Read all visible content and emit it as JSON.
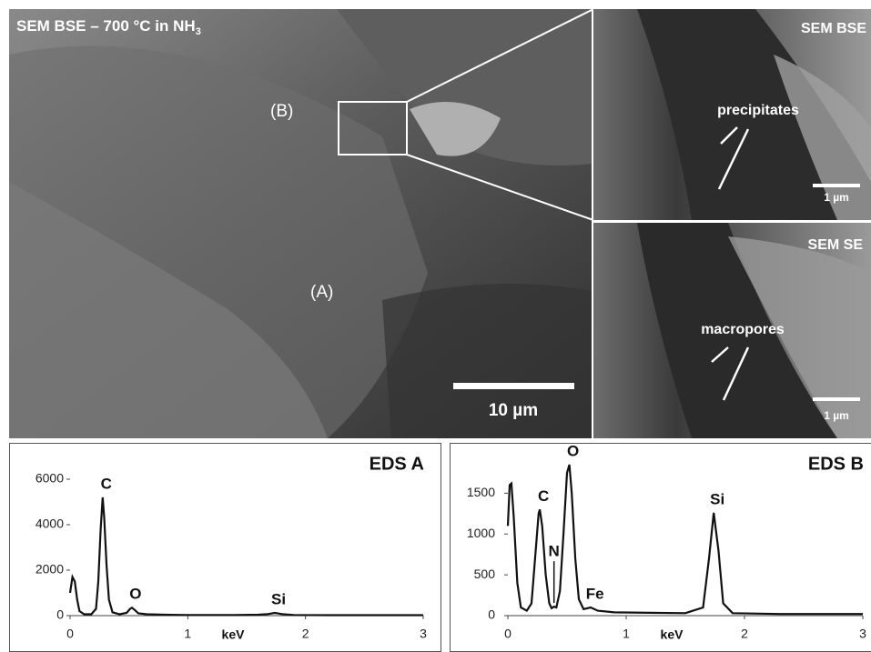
{
  "images": {
    "main": {
      "title": "SEM BSE – 700 °C in NH",
      "title_sub": "3",
      "label_b": "(B)",
      "label_a": "(A)",
      "scale": "10 µm"
    },
    "top_right": {
      "title": "SEM BSE",
      "label": "precipitates",
      "scale": "1 µm"
    },
    "bottom_right": {
      "title": "SEM SE",
      "label": "macropores",
      "scale": "1 µm"
    }
  },
  "chart_data": [
    {
      "type": "line",
      "title": "EDS A",
      "x_label": "keV",
      "color": "#111111",
      "xlim": [
        0,
        3
      ],
      "xticks": [
        0,
        1,
        2,
        3
      ],
      "ylim": [
        0,
        7000
      ],
      "yticks": [
        0,
        2000,
        4000,
        6000
      ],
      "annotations": [
        "C",
        "O",
        "Si"
      ],
      "x": [
        0,
        0.02,
        0.04,
        0.06,
        0.08,
        0.12,
        0.18,
        0.22,
        0.24,
        0.26,
        0.277,
        0.29,
        0.31,
        0.33,
        0.36,
        0.42,
        0.48,
        0.51,
        0.525,
        0.55,
        0.58,
        0.65,
        0.8,
        1.0,
        1.2,
        1.4,
        1.6,
        1.68,
        1.74,
        1.8,
        1.9,
        2.2,
        2.6,
        3.0
      ],
      "values": [
        1000,
        1700,
        1500,
        700,
        200,
        60,
        60,
        300,
        1500,
        3800,
        5200,
        4300,
        2200,
        700,
        150,
        60,
        120,
        300,
        350,
        250,
        100,
        60,
        40,
        30,
        30,
        30,
        40,
        70,
        120,
        70,
        30,
        20,
        20,
        20
      ]
    },
    {
      "type": "line",
      "title": "EDS B",
      "x_label": "keV",
      "color": "#111111",
      "xlim": [
        0,
        3
      ],
      "xticks": [
        0,
        1,
        2,
        3
      ],
      "ylim": [
        0,
        1950
      ],
      "yticks": [
        0,
        500,
        1000,
        1500
      ],
      "annotations": [
        "C",
        "N",
        "O",
        "Fe",
        "Si"
      ],
      "x": [
        0,
        0.015,
        0.03,
        0.05,
        0.08,
        0.11,
        0.16,
        0.2,
        0.23,
        0.26,
        0.27,
        0.29,
        0.32,
        0.35,
        0.37,
        0.39,
        0.41,
        0.44,
        0.47,
        0.5,
        0.52,
        0.54,
        0.57,
        0.6,
        0.64,
        0.7,
        0.76,
        0.9,
        1.2,
        1.5,
        1.65,
        1.7,
        1.74,
        1.78,
        1.82,
        1.9,
        2.3,
        3.0
      ],
      "values": [
        1100,
        1600,
        1620,
        1200,
        400,
        100,
        60,
        150,
        700,
        1250,
        1300,
        1100,
        500,
        150,
        90,
        110,
        100,
        300,
        1000,
        1750,
        1850,
        1500,
        700,
        200,
        80,
        100,
        60,
        40,
        35,
        30,
        100,
        700,
        1260,
        800,
        150,
        30,
        20,
        20
      ]
    }
  ]
}
